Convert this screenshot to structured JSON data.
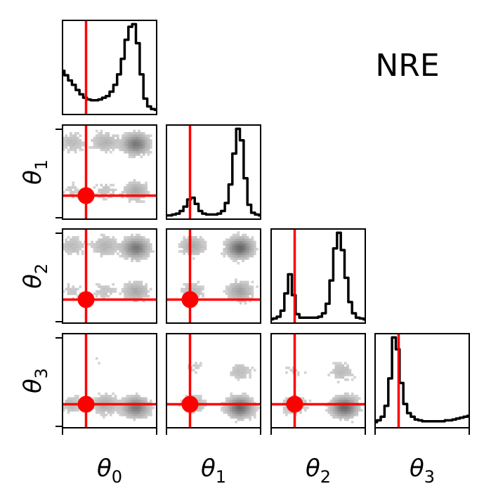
{
  "chart_data": {
    "type": "corner",
    "method_label": "NRE",
    "params": [
      "θ0",
      "θ1",
      "θ2",
      "θ3"
    ],
    "param_labels": [
      {
        "base": "θ",
        "sub": "0"
      },
      {
        "base": "θ",
        "sub": "1"
      },
      {
        "base": "θ",
        "sub": "2"
      },
      {
        "base": "θ",
        "sub": "3"
      }
    ],
    "true_values": [
      0.25,
      0.25,
      0.25,
      0.25
    ],
    "true_value_color": "#ff0000",
    "histogram_color": "#000000",
    "density_color": "#6e6e6e",
    "marginals": [
      {
        "param": "θ0",
        "x": [
          0.0,
          0.04,
          0.08,
          0.12,
          0.16,
          0.2,
          0.24,
          0.28,
          0.32,
          0.36,
          0.4,
          0.44,
          0.48,
          0.52,
          0.56,
          0.6,
          0.64,
          0.68,
          0.72,
          0.76,
          0.8,
          0.84,
          0.88,
          0.92,
          0.96,
          1.0
        ],
        "density": [
          0.46,
          0.41,
          0.35,
          0.3,
          0.24,
          0.19,
          0.15,
          0.13,
          0.12,
          0.12,
          0.13,
          0.15,
          0.17,
          0.22,
          0.3,
          0.42,
          0.6,
          0.82,
          0.97,
          1.0,
          0.78,
          0.42,
          0.14,
          0.05,
          0.02,
          0.01
        ]
      },
      {
        "param": "θ1",
        "x": [
          0.0,
          0.04,
          0.08,
          0.12,
          0.16,
          0.2,
          0.24,
          0.28,
          0.32,
          0.36,
          0.4,
          0.44,
          0.48,
          0.52,
          0.56,
          0.6,
          0.64,
          0.68,
          0.72,
          0.76,
          0.8,
          0.84,
          0.88,
          0.92,
          0.96,
          1.0
        ],
        "density": [
          0.0,
          0.0,
          0.01,
          0.02,
          0.05,
          0.1,
          0.18,
          0.2,
          0.13,
          0.05,
          0.02,
          0.01,
          0.01,
          0.01,
          0.02,
          0.05,
          0.14,
          0.35,
          0.7,
          0.98,
          0.85,
          0.42,
          0.12,
          0.03,
          0.01,
          0.0
        ]
      },
      {
        "param": "θ2",
        "x": [
          0.0,
          0.04,
          0.08,
          0.12,
          0.16,
          0.2,
          0.24,
          0.28,
          0.32,
          0.36,
          0.4,
          0.44,
          0.48,
          0.52,
          0.56,
          0.6,
          0.64,
          0.68,
          0.72,
          0.76,
          0.8,
          0.84,
          0.88,
          0.92,
          0.96,
          1.0
        ],
        "density": [
          0.0,
          0.01,
          0.03,
          0.1,
          0.3,
          0.52,
          0.28,
          0.06,
          0.02,
          0.02,
          0.02,
          0.02,
          0.02,
          0.03,
          0.07,
          0.18,
          0.45,
          0.82,
          1.0,
          0.8,
          0.48,
          0.2,
          0.07,
          0.02,
          0.01,
          0.0
        ]
      },
      {
        "param": "θ3",
        "x": [
          0.0,
          0.04,
          0.08,
          0.12,
          0.16,
          0.2,
          0.24,
          0.28,
          0.32,
          0.36,
          0.4,
          0.44,
          0.48,
          0.52,
          0.56,
          0.6,
          0.64,
          0.68,
          0.72,
          0.76,
          0.8,
          0.84,
          0.88,
          0.92,
          0.96,
          1.0
        ],
        "density": [
          0.02,
          0.04,
          0.08,
          0.2,
          0.5,
          0.95,
          0.82,
          0.45,
          0.22,
          0.12,
          0.08,
          0.05,
          0.04,
          0.03,
          0.03,
          0.03,
          0.03,
          0.03,
          0.03,
          0.04,
          0.04,
          0.05,
          0.06,
          0.07,
          0.08,
          0.09
        ]
      }
    ],
    "joint_modes": [
      {
        "pair": [
          "θ0",
          "θ1"
        ],
        "modes": [
          {
            "x": 0.1,
            "y": 0.82,
            "w": 0.2
          },
          {
            "x": 0.45,
            "y": 0.82,
            "w": 0.25
          },
          {
            "x": 0.78,
            "y": 0.8,
            "w": 0.6
          },
          {
            "x": 0.1,
            "y": 0.3,
            "w": 0.12
          },
          {
            "x": 0.45,
            "y": 0.3,
            "w": 0.15
          },
          {
            "x": 0.78,
            "y": 0.3,
            "w": 0.3
          }
        ]
      },
      {
        "pair": [
          "θ0",
          "θ2"
        ],
        "modes": [
          {
            "x": 0.1,
            "y": 0.82,
            "w": 0.2
          },
          {
            "x": 0.45,
            "y": 0.82,
            "w": 0.25
          },
          {
            "x": 0.78,
            "y": 0.8,
            "w": 0.6
          },
          {
            "x": 0.1,
            "y": 0.34,
            "w": 0.12
          },
          {
            "x": 0.45,
            "y": 0.34,
            "w": 0.15
          },
          {
            "x": 0.78,
            "y": 0.34,
            "w": 0.3
          }
        ]
      },
      {
        "pair": [
          "θ1",
          "θ2"
        ],
        "modes": [
          {
            "x": 0.28,
            "y": 0.82,
            "w": 0.3
          },
          {
            "x": 0.78,
            "y": 0.8,
            "w": 0.7
          },
          {
            "x": 0.28,
            "y": 0.34,
            "w": 0.2
          },
          {
            "x": 0.78,
            "y": 0.34,
            "w": 0.35
          }
        ]
      },
      {
        "pair": [
          "θ0",
          "θ3"
        ],
        "modes": [
          {
            "x": 0.1,
            "y": 0.25,
            "w": 0.2
          },
          {
            "x": 0.45,
            "y": 0.25,
            "w": 0.3
          },
          {
            "x": 0.78,
            "y": 0.22,
            "w": 0.6
          },
          {
            "x": 0.4,
            "y": 0.7,
            "w": 0.06
          }
        ]
      },
      {
        "pair": [
          "θ1",
          "θ3"
        ],
        "modes": [
          {
            "x": 0.28,
            "y": 0.25,
            "w": 0.25
          },
          {
            "x": 0.78,
            "y": 0.22,
            "w": 0.7
          },
          {
            "x": 0.3,
            "y": 0.65,
            "w": 0.1
          },
          {
            "x": 0.78,
            "y": 0.6,
            "w": 0.18
          }
        ]
      },
      {
        "pair": [
          "θ2",
          "θ3"
        ],
        "modes": [
          {
            "x": 0.25,
            "y": 0.25,
            "w": 0.25
          },
          {
            "x": 0.78,
            "y": 0.22,
            "w": 0.7
          },
          {
            "x": 0.25,
            "y": 0.6,
            "w": 0.1
          },
          {
            "x": 0.75,
            "y": 0.6,
            "w": 0.2
          }
        ]
      }
    ]
  }
}
